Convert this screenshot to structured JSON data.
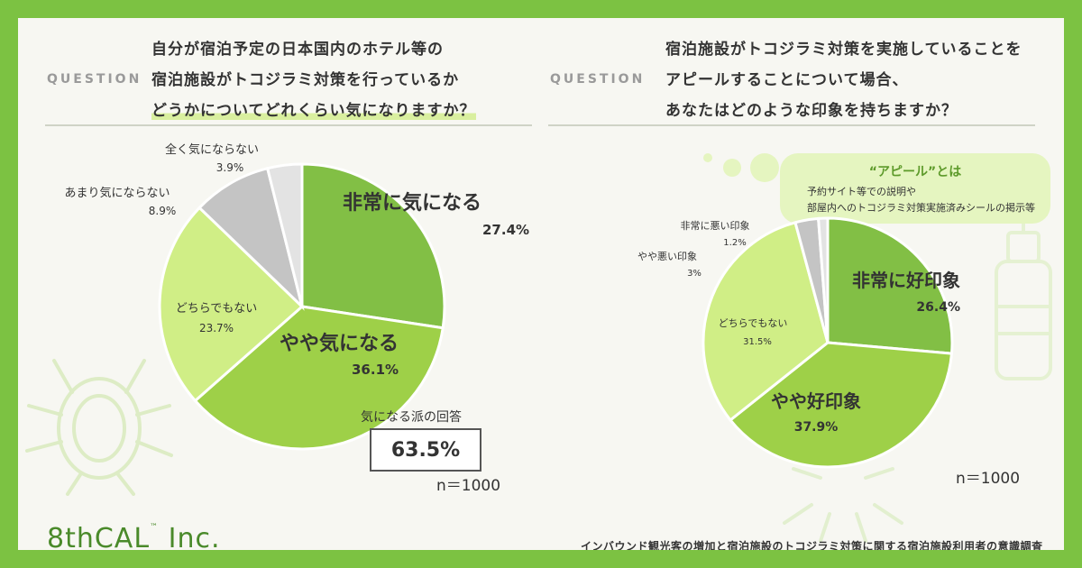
{
  "left": {
    "question_label": "QUESTION",
    "question_lines": [
      "自分が宿泊予定の日本国内のホテル等の",
      "宿泊施設がトコジラミ対策を行っているか",
      "どうかについてどれくらい気になりますか？"
    ],
    "n_label": "n＝1000",
    "answer_label": "気になる派の回答",
    "answer_value": "63.5%"
  },
  "right": {
    "question_label": "QUESTION",
    "question_lines": [
      "宿泊施設がトコジラミ対策を実施していることを",
      "アピールすることについて場合、",
      "あなたはどのような印象を持ちますか？"
    ],
    "n_label": "n＝1000",
    "callout_title": "“アピール”とは",
    "callout_lines": [
      "予約サイト等での説明や",
      "部屋内へのトコジラミ対策実施済みシールの掲示等"
    ]
  },
  "footer": {
    "logo": "8thCAL",
    "logo_tm": "™",
    "logo_suffix": "Inc.",
    "footnote": "インバウンド観光客の増加と宿泊施設のトコジラミ対策に関する宿泊施設利用者の意識調査"
  },
  "colors": {
    "frame": "#7cc242",
    "dark_green": "#82bf45",
    "mid_green": "#9ed048",
    "light_green": "#d0ee86",
    "gray": "#c4c4c4",
    "light_gray": "#e3e3e3"
  },
  "chart_data": [
    {
      "type": "pie",
      "slices": [
        {
          "label": "非常に気になる",
          "value": 27.4,
          "display": "27.4%",
          "color": "#82bf45",
          "big": true
        },
        {
          "label": "やや気になる",
          "value": 36.1,
          "display": "36.1%",
          "color": "#9ed048",
          "big": true
        },
        {
          "label": "どちらでもない",
          "value": 23.7,
          "display": "23.7%",
          "color": "#d0ee86",
          "big": false
        },
        {
          "label": "あまり気にならない",
          "value": 8.9,
          "display": "8.9%",
          "color": "#c4c4c4",
          "big": false
        },
        {
          "label": "全く気にならない",
          "value": 3.9,
          "display": "3.9%",
          "color": "#e3e3e3",
          "big": false
        }
      ]
    },
    {
      "type": "pie",
      "slices": [
        {
          "label": "非常に好印象",
          "value": 26.4,
          "display": "26.4%",
          "color": "#82bf45",
          "big": true
        },
        {
          "label": "やや好印象",
          "value": 37.9,
          "display": "37.9%",
          "color": "#9ed048",
          "big": true
        },
        {
          "label": "どちらでもない",
          "value": 31.5,
          "display": "31.5%",
          "color": "#d0ee86",
          "big": false
        },
        {
          "label": "やや悪い印象",
          "value": 3,
          "display": "3%",
          "color": "#c4c4c4",
          "big": false
        },
        {
          "label": "非常に悪い印象",
          "value": 1.2,
          "display": "1.2%",
          "color": "#e3e3e3",
          "big": false
        }
      ]
    }
  ]
}
